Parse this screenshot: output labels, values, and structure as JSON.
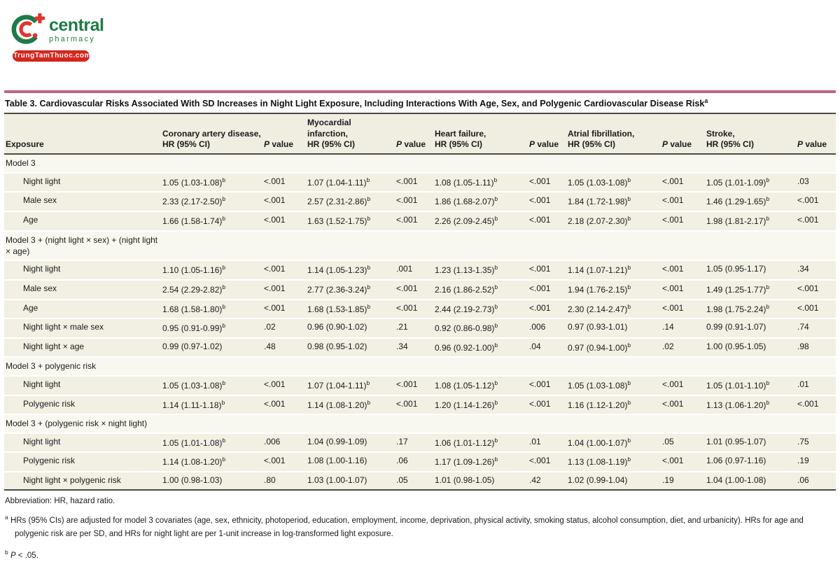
{
  "branding": {
    "name": "central",
    "subname": "pharmacy",
    "badge": "TrungTamThuoc.com",
    "green": "#1e7a46",
    "red": "#e0342c"
  },
  "table": {
    "accent_color": "#bf6386",
    "title": "Table 3. Cardiovascular Risks Associated With SD Increases in Night Light Exposure, Including Interactions With Age, Sex, and Polygenic Cardiovascular Disease Risk",
    "title_sup": "a",
    "columns": [
      {
        "lines": [
          "Exposure"
        ]
      },
      {
        "lines": [
          "Coronary artery disease,",
          "HR (95% CI)"
        ]
      },
      {
        "lines": [
          "P value"
        ]
      },
      {
        "lines": [
          "Myocardial infarction,",
          "HR (95% CI)"
        ]
      },
      {
        "lines": [
          "P value"
        ]
      },
      {
        "lines": [
          "Heart failure,",
          "HR (95% CI)"
        ]
      },
      {
        "lines": [
          "P value"
        ]
      },
      {
        "lines": [
          "Atrial fibrillation,",
          "HR (95% CI)"
        ]
      },
      {
        "lines": [
          "P value"
        ]
      },
      {
        "lines": [
          "Stroke,",
          "HR (95% CI)"
        ]
      },
      {
        "lines": [
          "P value"
        ]
      }
    ],
    "rows": [
      {
        "type": "section",
        "label": "Model 3"
      },
      {
        "type": "data",
        "label": "Night light",
        "cells": [
          "1.05 (1.03-1.08)^b",
          "<.001",
          "1.07 (1.04-1.11)^b",
          "<.001",
          "1.08 (1.05-1.11)^b",
          "<.001",
          "1.05 (1.03-1.08)^b",
          "<.001",
          "1.05 (1.01-1.09)^b",
          ".03"
        ]
      },
      {
        "type": "data",
        "label": "Male sex",
        "cells": [
          "2.33 (2.17-2.50)^b",
          "<.001",
          "2.57 (2.31-2.86)^b",
          "<.001",
          "1.86 (1.68-2.07)^b",
          "<.001",
          "1.84 (1.72-1.98)^b",
          "<.001",
          "1.46 (1.29-1.65)^b",
          "<.001"
        ]
      },
      {
        "type": "data",
        "label": "Age",
        "cells": [
          "1.66 (1.58-1.74)^b",
          "<.001",
          "1.63 (1.52-1.75)^b",
          "<.001",
          "2.26 (2.09-2.45)^b",
          "<.001",
          "2.18 (2.07-2.30)^b",
          "<.001",
          "1.98 (1.81-2.17)^b",
          "<.001"
        ]
      },
      {
        "type": "section",
        "label": "Model 3 + (night light × sex) + (night light × age)"
      },
      {
        "type": "data",
        "label": "Night light",
        "cells": [
          "1.10 (1.05-1.16)^b",
          "<.001",
          "1.14 (1.05-1.23)^b",
          ".001",
          "1.23 (1.13-1.35)^b",
          "<.001",
          "1.14 (1.07-1.21)^b",
          "<.001",
          "1.05 (0.95-1.17)",
          ".34"
        ]
      },
      {
        "type": "data",
        "label": "Male sex",
        "cells": [
          "2.54 (2.29-2.82)^b",
          "<.001",
          "2.77 (2.36-3.24)^b",
          "<.001",
          "2.16 (1.86-2.52)^b",
          "<.001",
          "1.94 (1.76-2.15)^b",
          "<.001",
          "1.49 (1.25-1.77)^b",
          "<.001"
        ]
      },
      {
        "type": "data",
        "label": "Age",
        "cells": [
          "1.68 (1.58-1.80)^b",
          "<.001",
          "1.68 (1.53-1.85)^b",
          "<.001",
          "2.44 (2.19-2.73)^b",
          "<.001",
          "2.30 (2.14-2.47)^b",
          "<.001",
          "1.98 (1.75-2.24)^b",
          "<.001"
        ]
      },
      {
        "type": "data",
        "label": "Night light × male sex",
        "cells": [
          "0.95 (0.91-0.99)^b",
          ".02",
          "0.96 (0.90-1.02)",
          ".21",
          "0.92 (0.86-0.98)^b",
          ".006",
          "0.97 (0.93-1.01)",
          ".14",
          "0.99 (0.91-1.07)",
          ".74"
        ]
      },
      {
        "type": "data",
        "label": "Night light × age",
        "cells": [
          "0.99 (0.97-1.02)",
          ".48",
          "0.98 (0.95-1.02)",
          ".34",
          "0.96 (0.92-1.00)^b",
          ".04",
          "0.97 (0.94-1.00)^b",
          ".02",
          "1.00 (0.95-1.05)",
          ".98"
        ]
      },
      {
        "type": "section",
        "label": "Model 3 + polygenic risk"
      },
      {
        "type": "data",
        "label": "Night light",
        "cells": [
          "1.05 (1.03-1.08)^b",
          "<.001",
          "1.07 (1.04-1.11)^b",
          "<.001",
          "1.08 (1.05-1.12)^b",
          "<.001",
          "1.05 (1.03-1.08)^b",
          "<.001",
          "1.05 (1.01-1.10)^b",
          ".01"
        ]
      },
      {
        "type": "data",
        "label": "Polygenic risk",
        "cells": [
          "1.14 (1.11-1.18)^b",
          "<.001",
          "1.14 (1.08-1.20)^b",
          "<.001",
          "1.20 (1.14-1.26)^b",
          "<.001",
          "1.16 (1.12-1.20)^b",
          "<.001",
          "1.13 (1.06-1.20)^b",
          "<.001"
        ]
      },
      {
        "type": "section",
        "label": "Model 3 + (polygenic risk × night light)"
      },
      {
        "type": "data",
        "label": "Night light",
        "cells": [
          "1.05 (1.01-1.08)^b",
          ".006",
          "1.04 (0.99-1.09)",
          ".17",
          "1.06 (1.01-1.12)^b",
          ".01",
          "1.04 (1.00-1.07)^b",
          ".05",
          "1.01 (0.95-1.07)",
          ".75"
        ]
      },
      {
        "type": "data",
        "label": "Polygenic risk",
        "cells": [
          "1.14 (1.08-1.20)^b",
          "<.001",
          "1.08 (1.00-1.16)",
          ".06",
          "1.17 (1.09-1.26)^b",
          "<.001",
          "1.13 (1.08-1.19)^b",
          "<.001",
          "1.06 (0.97-1.16)",
          ".19"
        ]
      },
      {
        "type": "data",
        "label": "Night light × polygenic risk",
        "cells": [
          "1.00 (0.98-1.03)",
          ".80",
          "1.03 (1.00-1.07)",
          ".05",
          "1.01 (0.98-1.05)",
          ".42",
          "1.02 (0.99-1.04)",
          ".19",
          "1.04 (1.00-1.08)",
          ".06"
        ]
      }
    ]
  },
  "footnotes": {
    "abbreviation": "Abbreviation: HR, hazard ratio.",
    "a_marker": "a",
    "a_text": "HRs (95% CIs) are adjusted for model 3 covariates (age, sex, ethnicity, photoperiod, education, employment, income, deprivation, physical activity, smoking status, alcohol consumption, diet, and urbanicity). HRs for age and polygenic risk are per SD, and HRs for night light are per 1-unit increase in log-transformed light exposure.",
    "b_marker": "b",
    "b_italic": "P",
    "b_rest": " < .05."
  }
}
